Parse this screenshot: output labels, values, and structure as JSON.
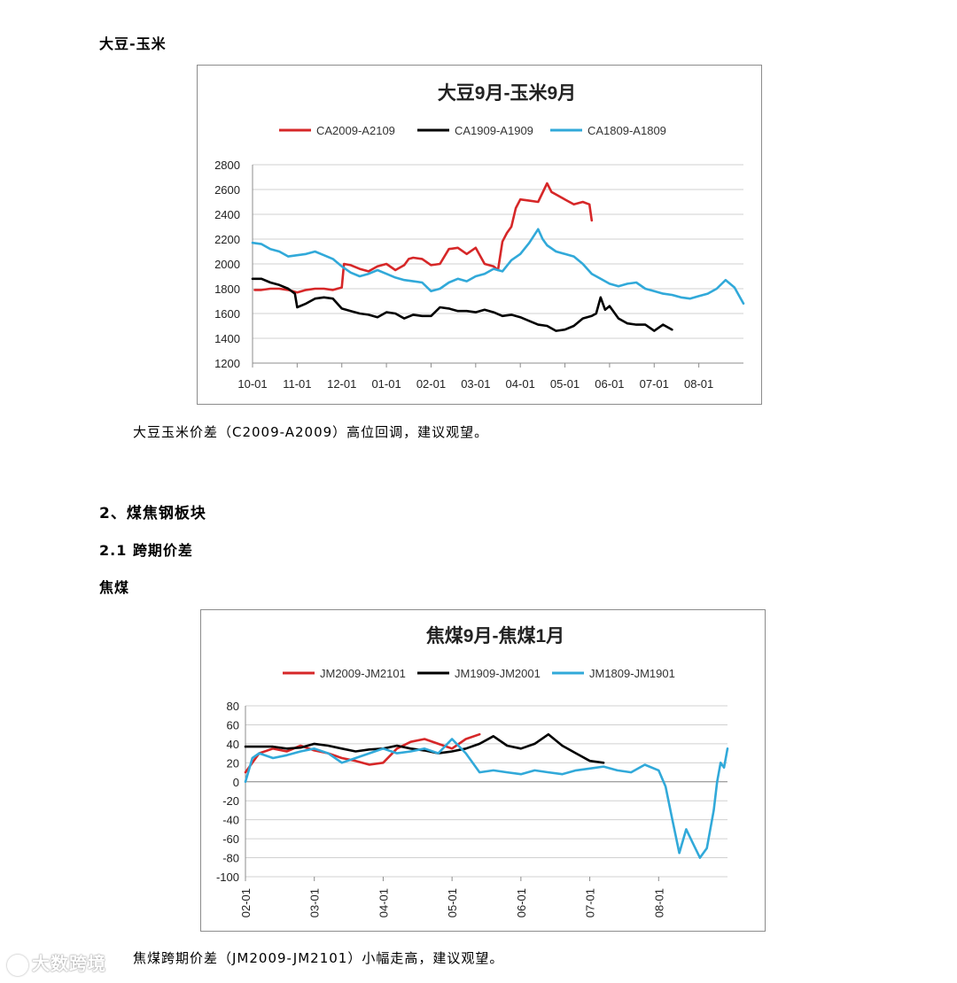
{
  "headings": {
    "soy_corn": "大豆-玉米",
    "section2": "2、煤焦钢板块",
    "section2_1": "2.1 跨期价差",
    "coking_coal": "焦煤"
  },
  "captions": {
    "chart1": "大豆玉米价差（C2009-A2009）高位回调，建议观望。",
    "chart2": "焦煤跨期价差（JM2009-JM2101）小幅走高，建议观望。"
  },
  "watermark": "大数跨境",
  "colors": {
    "red": "#d62728",
    "black": "#000000",
    "blue": "#31a9d9",
    "grid": "#d0d0d0",
    "axis": "#8c8c8c"
  },
  "chart_data": [
    {
      "type": "line",
      "title": "大豆9月-玉米9月",
      "xlabel": "",
      "ylabel": "",
      "ylim": [
        1200,
        2800
      ],
      "yticks": [
        1200,
        1400,
        1600,
        1800,
        2000,
        2200,
        2400,
        2600,
        2800
      ],
      "xlim": [
        0,
        11
      ],
      "xticks": [
        0,
        1,
        2,
        3,
        4,
        5,
        6,
        7,
        8,
        9,
        10
      ],
      "xtick_labels": [
        "10-01",
        "11-01",
        "12-01",
        "01-01",
        "02-01",
        "03-01",
        "04-01",
        "05-01",
        "06-01",
        "07-01",
        "08-01"
      ],
      "x_unit": "month index (0 = 10-01)",
      "grid": true,
      "legend": "top",
      "series": [
        {
          "name": "CA2009-A2109",
          "color": "#d62728",
          "x": [
            0.05,
            0.2,
            0.4,
            0.6,
            0.8,
            1.0,
            1.2,
            1.4,
            1.6,
            1.8,
            2.0,
            2.05,
            2.2,
            2.4,
            2.6,
            2.8,
            3.0,
            3.2,
            3.4,
            3.5,
            3.6,
            3.8,
            4.0,
            4.2,
            4.4,
            4.6,
            4.8,
            5.0,
            5.2,
            5.4,
            5.5,
            5.6,
            5.7,
            5.8,
            5.9,
            6.0,
            6.2,
            6.4,
            6.6,
            6.7,
            6.8,
            7.0,
            7.2,
            7.4,
            7.55,
            7.6
          ],
          "values": [
            1790,
            1790,
            1800,
            1800,
            1790,
            1770,
            1790,
            1800,
            1800,
            1790,
            1810,
            2000,
            1990,
            1960,
            1940,
            1980,
            2000,
            1950,
            1990,
            2040,
            2050,
            2040,
            1990,
            2000,
            2120,
            2130,
            2080,
            2130,
            2000,
            1980,
            1950,
            2180,
            2250,
            2300,
            2450,
            2520,
            2510,
            2500,
            2650,
            2580,
            2560,
            2520,
            2480,
            2500,
            2480,
            2350
          ]
        },
        {
          "name": "CA1909-A1909",
          "color": "#000000",
          "x": [
            0.0,
            0.2,
            0.4,
            0.6,
            0.8,
            0.95,
            1.0,
            1.2,
            1.4,
            1.6,
            1.8,
            2.0,
            2.2,
            2.4,
            2.6,
            2.8,
            3.0,
            3.2,
            3.4,
            3.6,
            3.8,
            4.0,
            4.2,
            4.4,
            4.6,
            4.8,
            5.0,
            5.2,
            5.4,
            5.6,
            5.8,
            6.0,
            6.2,
            6.4,
            6.6,
            6.8,
            7.0,
            7.2,
            7.4,
            7.6,
            7.7,
            7.8,
            7.9,
            8.0,
            8.2,
            8.4,
            8.6,
            8.8,
            9.0,
            9.2,
            9.4
          ],
          "values": [
            1880,
            1880,
            1850,
            1830,
            1800,
            1760,
            1650,
            1680,
            1720,
            1730,
            1720,
            1640,
            1620,
            1600,
            1590,
            1570,
            1610,
            1600,
            1560,
            1590,
            1580,
            1580,
            1650,
            1640,
            1620,
            1620,
            1610,
            1630,
            1610,
            1580,
            1590,
            1570,
            1540,
            1510,
            1500,
            1460,
            1470,
            1500,
            1560,
            1580,
            1600,
            1730,
            1630,
            1660,
            1560,
            1520,
            1510,
            1510,
            1460,
            1510,
            1470
          ]
        },
        {
          "name": "CA1809-A1809",
          "color": "#31a9d9",
          "x": [
            0.0,
            0.2,
            0.4,
            0.6,
            0.8,
            1.0,
            1.2,
            1.4,
            1.6,
            1.8,
            2.0,
            2.2,
            2.4,
            2.6,
            2.8,
            3.0,
            3.2,
            3.4,
            3.6,
            3.8,
            4.0,
            4.2,
            4.4,
            4.6,
            4.8,
            5.0,
            5.2,
            5.4,
            5.6,
            5.8,
            6.0,
            6.2,
            6.4,
            6.5,
            6.6,
            6.8,
            7.0,
            7.2,
            7.4,
            7.6,
            7.8,
            8.0,
            8.2,
            8.4,
            8.6,
            8.8,
            9.0,
            9.2,
            9.4,
            9.6,
            9.8,
            10.0,
            10.2,
            10.4,
            10.6,
            10.8,
            11.0
          ],
          "values": [
            2170,
            2160,
            2120,
            2100,
            2060,
            2070,
            2080,
            2100,
            2070,
            2040,
            1980,
            1930,
            1900,
            1920,
            1950,
            1920,
            1890,
            1870,
            1860,
            1850,
            1780,
            1800,
            1850,
            1880,
            1860,
            1900,
            1920,
            1960,
            1940,
            2030,
            2080,
            2170,
            2280,
            2200,
            2150,
            2100,
            2080,
            2060,
            2000,
            1920,
            1880,
            1840,
            1820,
            1840,
            1850,
            1800,
            1780,
            1760,
            1750,
            1730,
            1720,
            1740,
            1760,
            1800,
            1870,
            1810,
            1680
          ]
        }
      ]
    },
    {
      "type": "line",
      "title": "焦煤9月-焦煤1月",
      "xlabel": "",
      "ylabel": "",
      "ylim": [
        -100,
        80
      ],
      "yticks": [
        -100,
        -80,
        -60,
        -40,
        -20,
        0,
        20,
        40,
        60,
        80
      ],
      "xlim": [
        0,
        7
      ],
      "xticks": [
        0,
        1,
        2,
        3,
        4,
        5,
        6
      ],
      "xtick_labels": [
        "02-01",
        "03-01",
        "04-01",
        "05-01",
        "06-01",
        "07-01",
        "08-01"
      ],
      "x_unit": "month index (0 = 02-01)",
      "grid": true,
      "legend": "top",
      "series": [
        {
          "name": "JM2009-JM2101",
          "color": "#d62728",
          "x": [
            0.0,
            0.1,
            0.2,
            0.4,
            0.6,
            0.8,
            1.0,
            1.2,
            1.4,
            1.6,
            1.8,
            2.0,
            2.2,
            2.4,
            2.6,
            2.8,
            3.0,
            3.2,
            3.4
          ],
          "values": [
            10,
            20,
            30,
            35,
            32,
            38,
            33,
            30,
            25,
            22,
            18,
            20,
            35,
            42,
            45,
            40,
            35,
            45,
            50
          ]
        },
        {
          "name": "JM1909-JM2001",
          "color": "#000000",
          "x": [
            0.0,
            0.2,
            0.4,
            0.6,
            0.8,
            1.0,
            1.2,
            1.4,
            1.6,
            1.8,
            2.0,
            2.2,
            2.4,
            2.6,
            2.8,
            3.0,
            3.2,
            3.4,
            3.6,
            3.8,
            4.0,
            4.2,
            4.4,
            4.6,
            4.8,
            5.0,
            5.2
          ],
          "values": [
            37,
            37,
            37,
            35,
            36,
            40,
            38,
            35,
            32,
            34,
            35,
            38,
            35,
            33,
            30,
            32,
            35,
            40,
            48,
            38,
            35,
            40,
            50,
            38,
            30,
            22,
            20
          ]
        },
        {
          "name": "JM1809-JM1901",
          "color": "#31a9d9",
          "x": [
            0.0,
            0.1,
            0.2,
            0.4,
            0.6,
            0.8,
            1.0,
            1.2,
            1.4,
            1.6,
            1.8,
            2.0,
            2.2,
            2.4,
            2.6,
            2.8,
            3.0,
            3.2,
            3.4,
            3.6,
            3.8,
            4.0,
            4.2,
            4.4,
            4.6,
            4.8,
            5.0,
            5.2,
            5.4,
            5.6,
            5.8,
            6.0,
            6.1,
            6.2,
            6.3,
            6.4,
            6.5,
            6.6,
            6.7,
            6.8,
            6.85,
            6.9,
            6.95,
            7.0
          ],
          "values": [
            0,
            25,
            30,
            25,
            28,
            32,
            35,
            30,
            20,
            25,
            30,
            35,
            30,
            32,
            35,
            30,
            45,
            30,
            10,
            12,
            10,
            8,
            12,
            10,
            8,
            12,
            14,
            16,
            12,
            10,
            18,
            12,
            -5,
            -40,
            -75,
            -50,
            -65,
            -80,
            -70,
            -30,
            0,
            20,
            15,
            35
          ]
        }
      ]
    }
  ]
}
